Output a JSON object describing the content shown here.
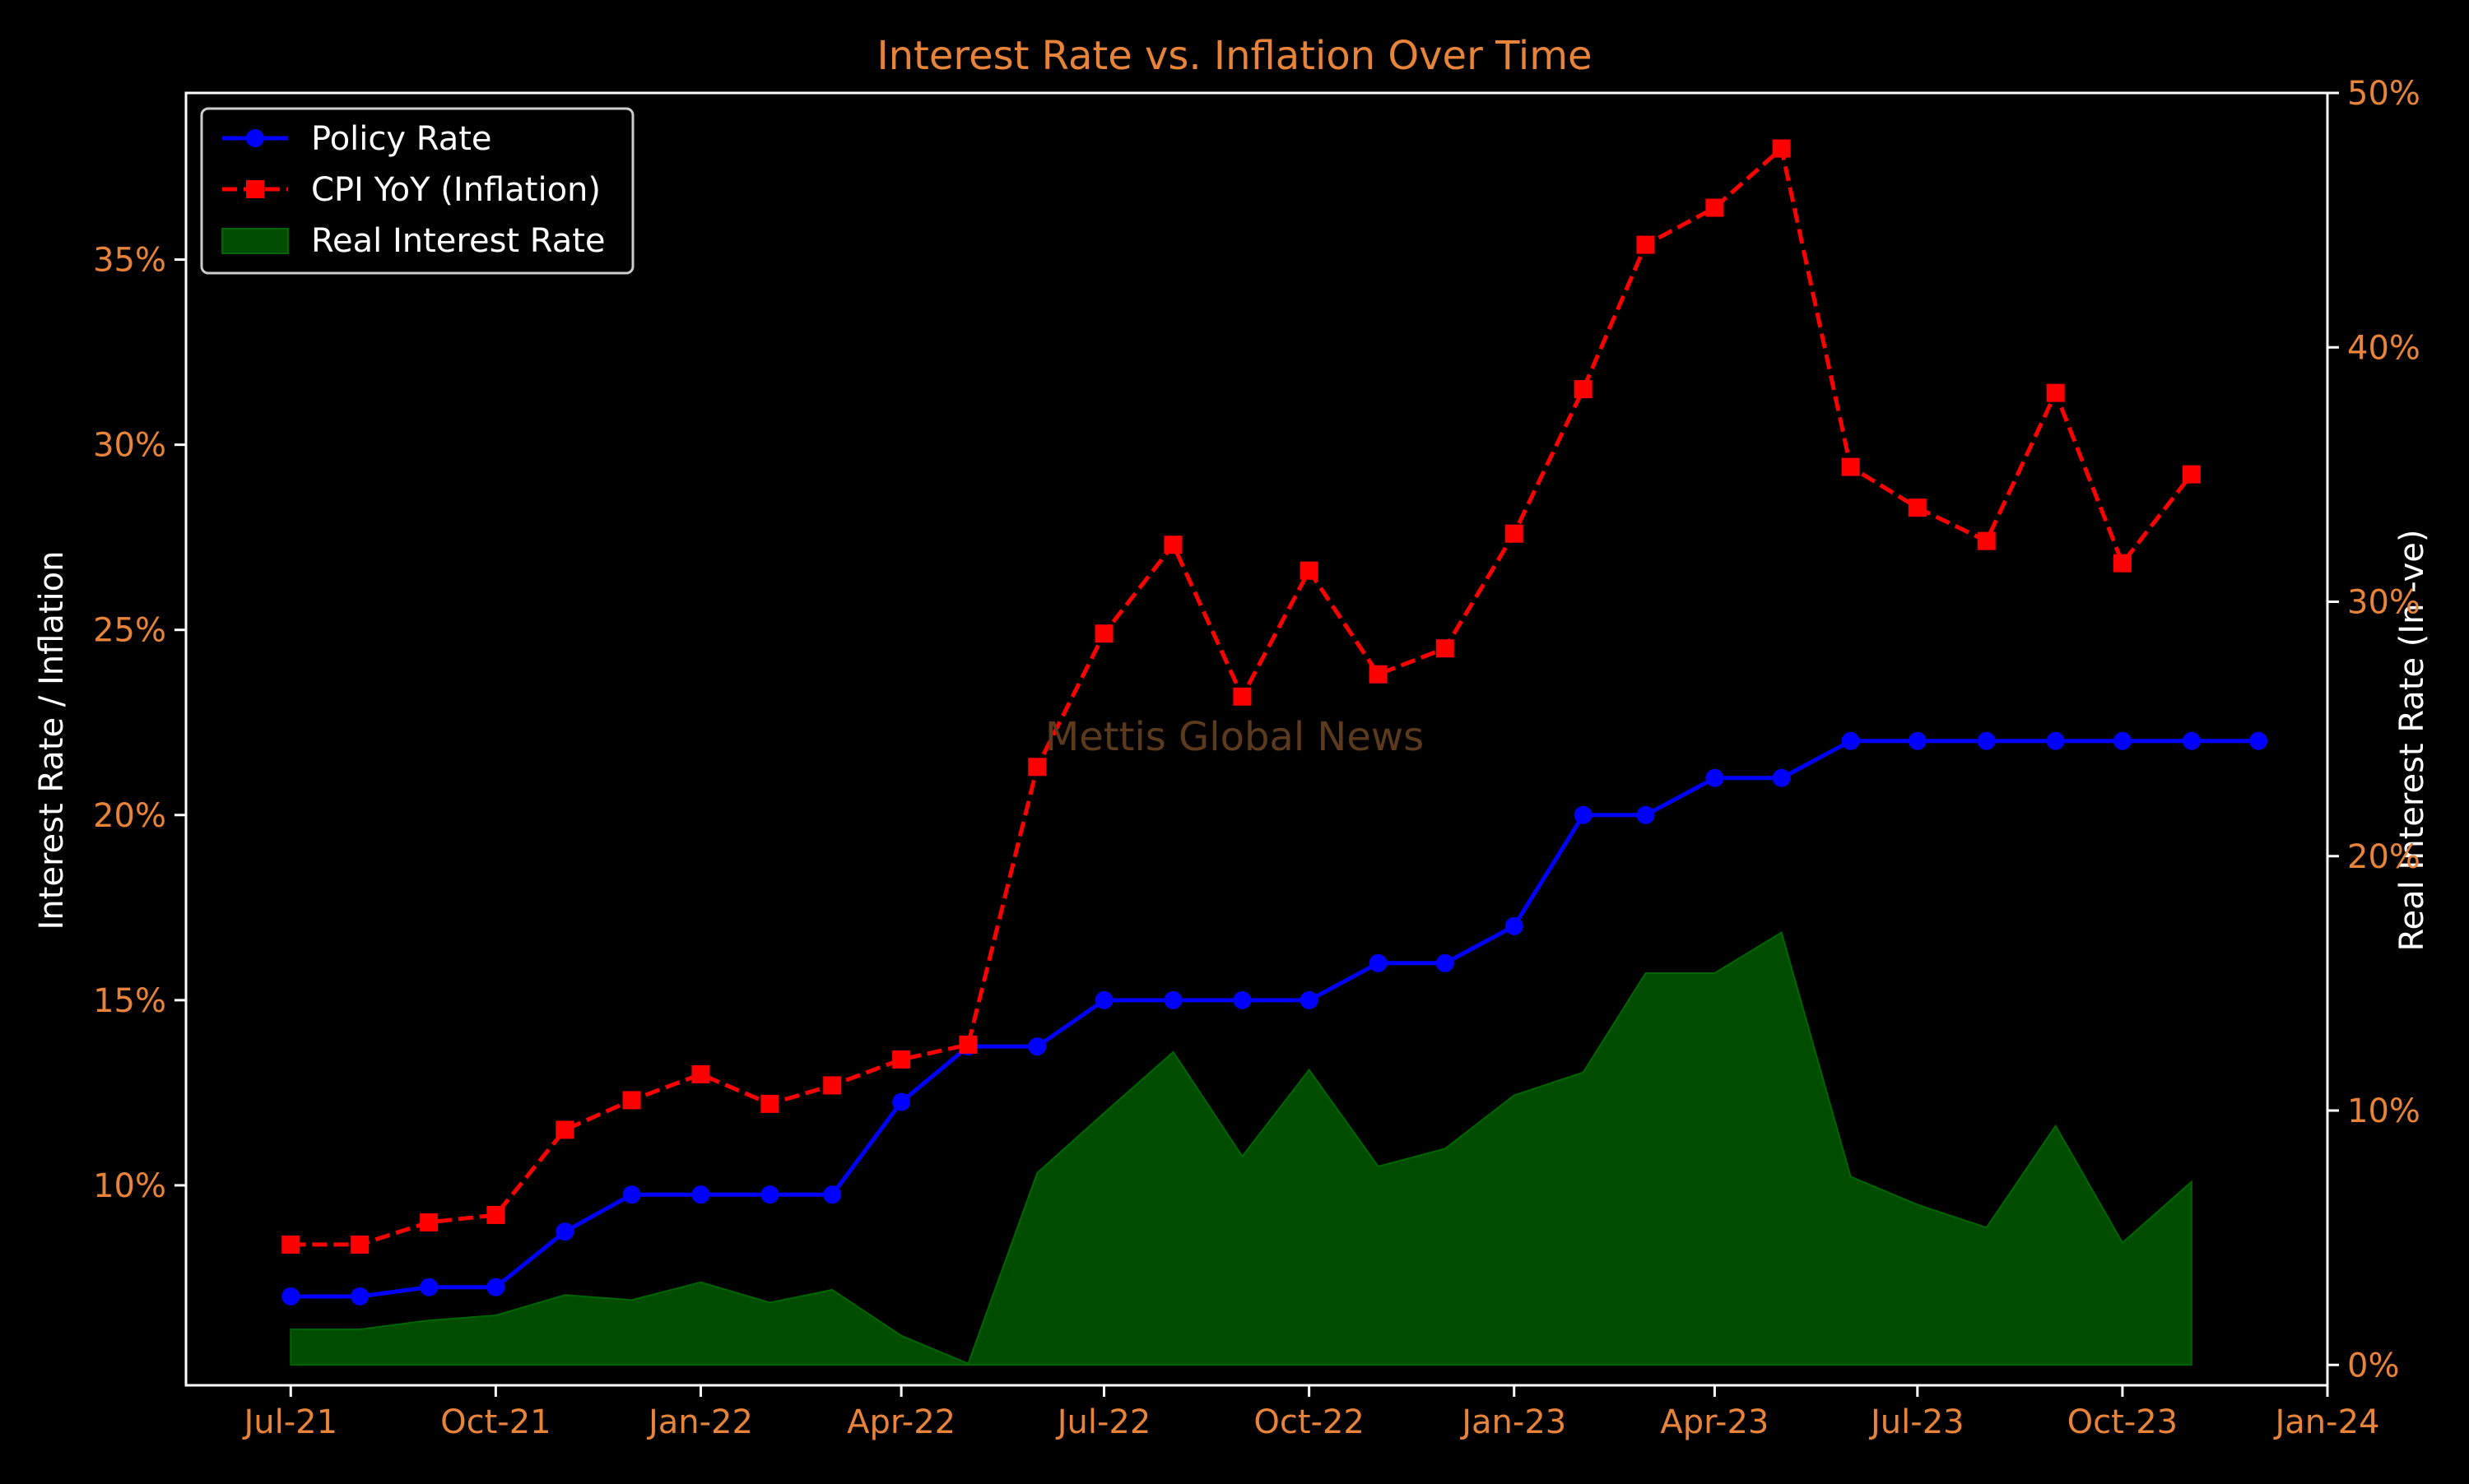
{
  "chart_data": {
    "type": "line",
    "title": "Interest Rate vs. Inflation Over Time",
    "watermark": "Mettis Global News",
    "x_ticks": [
      "Jul-21",
      "Oct-21",
      "Jan-22",
      "Apr-22",
      "Jul-22",
      "Oct-22",
      "Jan-23",
      "Apr-23",
      "Jul-23",
      "Oct-23",
      "Jan-24"
    ],
    "xlim": [
      "2021-05-15",
      "2024-01-01"
    ],
    "ylabel": "Interest Rate / Inflation",
    "y2label": "Real Interest Rate (In -ve)",
    "ylim": [
      4.6,
      39.5
    ],
    "y2lim": [
      -0.8,
      50
    ],
    "y_ticks": [
      10,
      15,
      20,
      25,
      30,
      35
    ],
    "y_tick_labels": [
      "10%",
      "15%",
      "20%",
      "25%",
      "30%",
      "35%"
    ],
    "y2_ticks": [
      0,
      10,
      20,
      30,
      40,
      50
    ],
    "y2_tick_labels": [
      "0%",
      "10%",
      "20%",
      "30%",
      "40%",
      "50%"
    ],
    "legend_position": "top-left",
    "grid": false,
    "series": [
      {
        "name": "Policy Rate",
        "axis": "left",
        "style": "solid",
        "marker": "circle",
        "color": "#0000ff",
        "x": [
          "2021-07-01",
          "2021-08-01",
          "2021-09-01",
          "2021-10-01",
          "2021-11-01",
          "2021-12-01",
          "2022-01-01",
          "2022-02-01",
          "2022-03-01",
          "2022-04-01",
          "2022-05-01",
          "2022-06-01",
          "2022-07-01",
          "2022-08-01",
          "2022-09-01",
          "2022-10-01",
          "2022-11-01",
          "2022-12-01",
          "2023-01-01",
          "2023-02-01",
          "2023-03-01",
          "2023-04-01",
          "2023-05-01",
          "2023-06-01",
          "2023-07-01",
          "2023-08-01",
          "2023-09-01",
          "2023-10-01",
          "2023-11-01",
          "2023-12-01"
        ],
        "values": [
          7.0,
          7.0,
          7.25,
          7.25,
          8.75,
          9.75,
          9.75,
          9.75,
          9.75,
          12.25,
          13.75,
          13.75,
          15.0,
          15.0,
          15.0,
          15.0,
          16.0,
          16.0,
          17.0,
          20.0,
          20.0,
          21.0,
          21.0,
          22.0,
          22.0,
          22.0,
          22.0,
          22.0,
          22.0,
          22.0
        ]
      },
      {
        "name": "CPI YoY (Inflation)",
        "axis": "left",
        "style": "dashed",
        "marker": "square",
        "color": "#ff0000",
        "x": [
          "2021-07-01",
          "2021-08-01",
          "2021-09-01",
          "2021-10-01",
          "2021-11-01",
          "2021-12-01",
          "2022-01-01",
          "2022-02-01",
          "2022-03-01",
          "2022-04-01",
          "2022-05-01",
          "2022-06-01",
          "2022-07-01",
          "2022-08-01",
          "2022-09-01",
          "2022-10-01",
          "2022-11-01",
          "2022-12-01",
          "2023-01-01",
          "2023-02-01",
          "2023-03-01",
          "2023-04-01",
          "2023-05-01",
          "2023-06-01",
          "2023-07-01",
          "2023-08-01",
          "2023-09-01",
          "2023-10-01",
          "2023-11-01"
        ],
        "values": [
          8.4,
          8.4,
          9.0,
          9.2,
          11.5,
          12.3,
          13.0,
          12.2,
          12.7,
          13.4,
          13.8,
          21.3,
          24.9,
          27.3,
          23.2,
          26.6,
          23.8,
          24.5,
          27.6,
          31.5,
          35.4,
          36.4,
          38.0,
          29.4,
          28.3,
          27.4,
          31.4,
          26.8,
          29.2
        ]
      },
      {
        "name": "Real Interest Rate",
        "axis": "right",
        "style": "area",
        "color": "#004d00",
        "x": [
          "2021-07-01",
          "2021-08-01",
          "2021-09-01",
          "2021-10-01",
          "2021-11-01",
          "2021-12-01",
          "2022-01-01",
          "2022-02-01",
          "2022-03-01",
          "2022-04-01",
          "2022-05-01",
          "2022-06-01",
          "2022-07-01",
          "2022-08-01",
          "2022-09-01",
          "2022-10-01",
          "2022-11-01",
          "2022-12-01",
          "2023-01-01",
          "2023-02-01",
          "2023-03-01",
          "2023-04-01",
          "2023-05-01",
          "2023-06-01",
          "2023-07-01",
          "2023-08-01",
          "2023-09-01",
          "2023-10-01",
          "2023-11-01"
        ],
        "values": [
          1.4,
          1.4,
          1.75,
          1.95,
          2.75,
          2.55,
          3.25,
          2.45,
          2.95,
          1.15,
          0.05,
          7.55,
          9.9,
          12.3,
          8.2,
          11.6,
          7.8,
          8.5,
          10.6,
          11.5,
          15.4,
          15.4,
          17.0,
          7.4,
          6.3,
          5.4,
          9.4,
          4.8,
          7.2
        ]
      }
    ]
  },
  "colors": {
    "background": "#000000",
    "axes": "#ffffff",
    "tick_text": "#e8833a",
    "title": "#e8833a",
    "watermark": "#5c3a1e",
    "legend_border": "#cccccc"
  }
}
